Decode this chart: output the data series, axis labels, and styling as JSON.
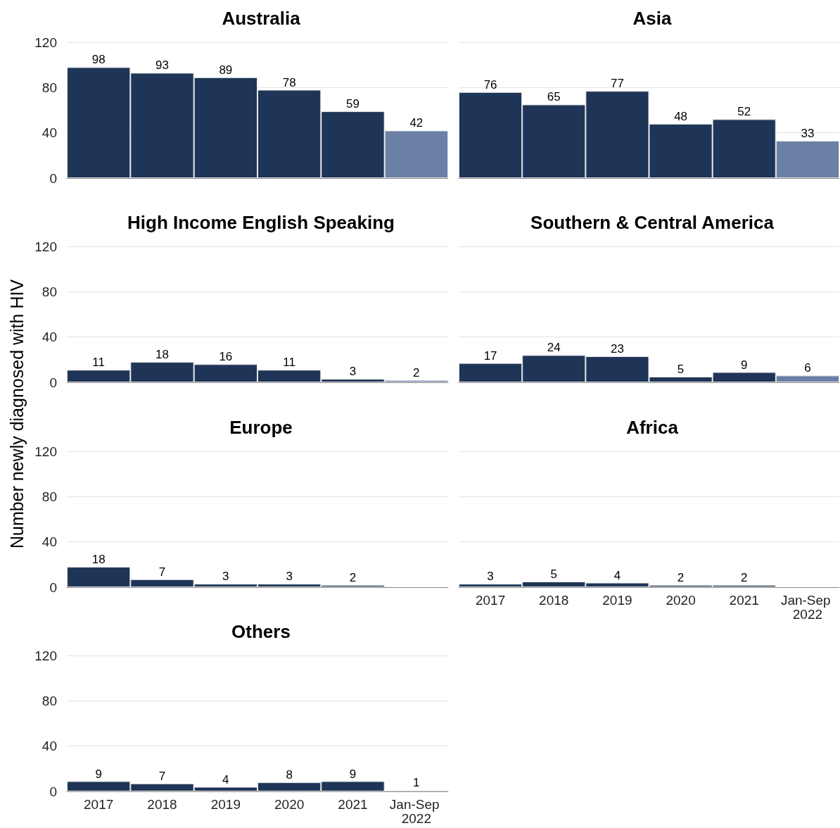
{
  "chart_data": [
    {
      "type": "bar",
      "title": "Australia",
      "categories": [
        "2017",
        "2018",
        "2019",
        "2020",
        "2021",
        "Jan-Sep 2022"
      ],
      "values": [
        98,
        93,
        89,
        78,
        59,
        42
      ],
      "colors": [
        "#1f3557",
        "#1f3557",
        "#1f3557",
        "#1f3557",
        "#1f3557",
        "#6b80a5"
      ],
      "ylim": [
        0,
        120
      ],
      "yticks": [
        0,
        40,
        80,
        120
      ],
      "grid": "y",
      "data_labels": true,
      "tick_labels": "y"
    },
    {
      "type": "bar",
      "title": "Asia",
      "categories": [
        "2017",
        "2018",
        "2019",
        "2020",
        "2021",
        "Jan-Sep 2022"
      ],
      "values": [
        76,
        65,
        77,
        48,
        52,
        33
      ],
      "colors": [
        "#1f3557",
        "#1f3557",
        "#1f3557",
        "#1f3557",
        "#1f3557",
        "#6b80a5"
      ],
      "ylim": [
        0,
        120
      ],
      "yticks": [
        0,
        40,
        80,
        120
      ],
      "grid": "y",
      "data_labels": true,
      "tick_labels": false
    },
    {
      "type": "bar",
      "title": "High Income English Speaking",
      "categories": [
        "2017",
        "2018",
        "2019",
        "2020",
        "2021",
        "Jan-Sep 2022"
      ],
      "values": [
        11,
        18,
        16,
        11,
        3,
        2
      ],
      "colors": [
        "#1f3557",
        "#1f3557",
        "#1f3557",
        "#1f3557",
        "#1f3557",
        "#6b80a5"
      ],
      "ylim": [
        0,
        120
      ],
      "yticks": [
        0,
        40,
        80,
        120
      ],
      "grid": "y",
      "data_labels": true,
      "tick_labels": "y"
    },
    {
      "type": "bar",
      "title": "Southern & Central America",
      "categories": [
        "2017",
        "2018",
        "2019",
        "2020",
        "2021",
        "Jan-Sep 2022"
      ],
      "values": [
        17,
        24,
        23,
        5,
        9,
        6
      ],
      "colors": [
        "#1f3557",
        "#1f3557",
        "#1f3557",
        "#1f3557",
        "#1f3557",
        "#6b80a5"
      ],
      "ylim": [
        0,
        120
      ],
      "yticks": [
        0,
        40,
        80,
        120
      ],
      "grid": "y",
      "data_labels": true,
      "tick_labels": false
    },
    {
      "type": "bar",
      "title": "Europe",
      "ylabel": "Number newly diagnosed with HIV",
      "categories": [
        "2017",
        "2018",
        "2019",
        "2020",
        "2021",
        "Jan-Sep 2022"
      ],
      "values": [
        18,
        7,
        3,
        3,
        2,
        null
      ],
      "colors": [
        "#1f3557",
        "#1f3557",
        "#1f3557",
        "#1f3557",
        "#1f3557",
        "#6b80a5"
      ],
      "ylim": [
        0,
        120
      ],
      "yticks": [
        0,
        40,
        80,
        120
      ],
      "grid": "y",
      "data_labels": true,
      "tick_labels": "y"
    },
    {
      "type": "bar",
      "title": "Africa",
      "categories": [
        "2017",
        "2018",
        "2019",
        "2020",
        "2021",
        "Jan-Sep 2022"
      ],
      "values": [
        3,
        5,
        4,
        2,
        2,
        null
      ],
      "colors": [
        "#1f3557",
        "#1f3557",
        "#1f3557",
        "#1f3557",
        "#1f3557",
        "#6b80a5"
      ],
      "ylim": [
        0,
        120
      ],
      "yticks": [
        0,
        40,
        80,
        120
      ],
      "grid": "y",
      "data_labels": true,
      "tick_labels": "x"
    },
    {
      "type": "bar",
      "title": "Others",
      "categories": [
        "2017",
        "2018",
        "2019",
        "2020",
        "2021",
        "Jan-Sep 2022"
      ],
      "values": [
        9,
        7,
        4,
        8,
        9,
        1
      ],
      "colors": [
        "#1f3557",
        "#1f3557",
        "#1f3557",
        "#1f3557",
        "#1f3557",
        "#6b80a5"
      ],
      "ylim": [
        0,
        120
      ],
      "yticks": [
        0,
        40,
        80,
        120
      ],
      "grid": "y",
      "data_labels": true
    }
  ]
}
